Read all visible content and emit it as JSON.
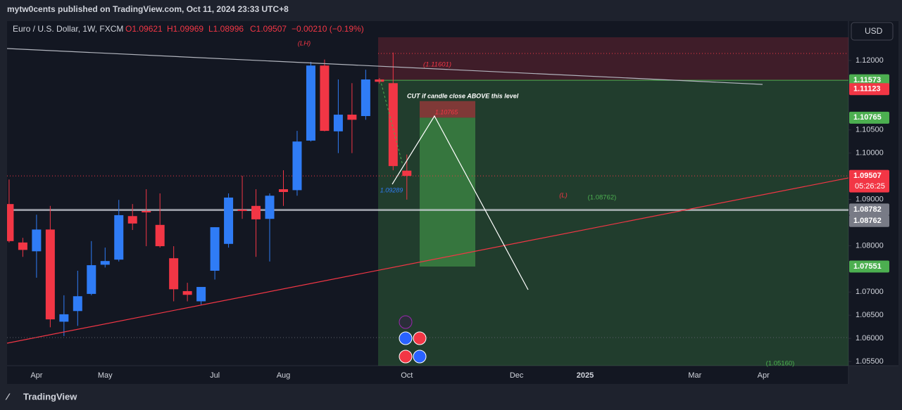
{
  "header": "mytw0cents published on TradingView.com, Oct 11, 2024 23:33 UTC+8",
  "footer": "TradingView",
  "currency_button": "USD",
  "chart_data": {
    "type": "candlestick",
    "title": "Euro / U.S. Dollar, 1W, FXCM",
    "legend": {
      "open": "O1.09621",
      "high": "H1.09969",
      "low": "L1.08996",
      "close": "C1.09507",
      "change": "−0.00210 (−0.19%)"
    },
    "up_color": "#2f7cf6",
    "down_color": "#f23645",
    "candles": {
      "open": [
        1.089,
        1.0807,
        1.0788,
        1.0835,
        1.0636,
        1.0659,
        1.0696,
        1.0759,
        1.077,
        1.0864,
        1.0875,
        1.0845,
        1.0773,
        1.0702,
        1.068,
        1.0746,
        1.0804,
        1.0878,
        1.0886,
        1.0858,
        1.0922,
        1.092,
        1.1027,
        1.1189,
        1.1047,
        1.1083,
        1.108,
        1.1159,
        1.1151,
        1.09621
      ],
      "high": [
        1.0943,
        1.0817,
        1.0867,
        1.0886,
        1.0693,
        1.0746,
        1.081,
        1.0796,
        1.0899,
        1.089,
        1.0922,
        1.0913,
        1.0799,
        1.072,
        1.0706,
        1.084,
        1.0913,
        1.0951,
        1.0922,
        1.0913,
        1.0963,
        1.1048,
        1.1197,
        1.1202,
        1.1159,
        1.1151,
        1.118,
        1.1162,
        1.1217,
        1.09969
      ],
      "low": [
        1.0807,
        1.0776,
        1.0731,
        1.0624,
        1.0605,
        1.0627,
        1.0693,
        1.0753,
        1.0766,
        1.0834,
        1.0799,
        1.0796,
        1.068,
        1.068,
        1.0673,
        1.0727,
        1.0796,
        1.0858,
        1.0776,
        1.0766,
        1.0886,
        1.0908,
        1.1025,
        1.1047,
        1.1,
        1.1,
        1.1072,
        1.115,
        1.0963,
        1.08996
      ],
      "close": [
        1.081,
        1.0791,
        1.0835,
        1.0641,
        1.0652,
        1.0691,
        1.0758,
        1.0767,
        1.0866,
        1.0848,
        1.0872,
        1.0799,
        1.0706,
        1.0694,
        1.0711,
        1.084,
        1.0904,
        1.0875,
        1.0857,
        1.0908,
        1.0916,
        1.1025,
        1.1189,
        1.1048,
        1.1083,
        1.1072,
        1.1159,
        1.1154,
        1.0972,
        1.09507
      ]
    },
    "ylim": [
      1.0541,
      1.1285
    ],
    "yticks": [
      {
        "value": 1.055,
        "label": "1.05500"
      },
      {
        "value": 1.06,
        "label": "1.06000"
      },
      {
        "value": 1.065,
        "label": "1.06500"
      },
      {
        "value": 1.07,
        "label": "1.07000"
      },
      {
        "value": 1.08,
        "label": "1.08000"
      },
      {
        "value": 1.09,
        "label": "1.09000"
      },
      {
        "value": 1.1,
        "label": "1.10000"
      },
      {
        "value": 1.105,
        "label": "1.10500"
      },
      {
        "value": 1.12,
        "label": "1.12000"
      }
    ],
    "xlim": [
      -0.15,
      61.2
    ],
    "xticks": [
      {
        "value": 2,
        "label": "Apr"
      },
      {
        "value": 7,
        "label": "May"
      },
      {
        "value": 15,
        "label": "Jul"
      },
      {
        "value": 20,
        "label": "Aug"
      },
      {
        "value": 29,
        "label": "Oct"
      },
      {
        "value": 37,
        "label": "Dec"
      },
      {
        "value": 42,
        "label": "2025"
      },
      {
        "value": 50,
        "label": "Mar"
      },
      {
        "value": 55,
        "label": "Apr"
      }
    ],
    "price_labels": [
      {
        "value": 1.11573,
        "color": "#4caf50"
      },
      {
        "value": 1.11123,
        "color": "#f23645"
      },
      {
        "value": 1.10765,
        "color": "#4caf50"
      },
      {
        "value": 1.09507,
        "color": "#f23645",
        "countdown": "05:26:25"
      },
      {
        "value": 1.08782,
        "color": "#787b86"
      },
      {
        "value": 1.08762,
        "color": "#787b86"
      },
      {
        "value": 1.07551,
        "color": "#4caf50"
      }
    ],
    "annotations": {
      "lh": "(LH)",
      "lh_level": "(1.11601)",
      "cut": "CUT if candle close ABOVE this level",
      "entry": "1.10765",
      "low_point": "1.09289",
      "l": "(L)",
      "l_level": "(1.08762)",
      "target": "(1.05160)"
    }
  }
}
